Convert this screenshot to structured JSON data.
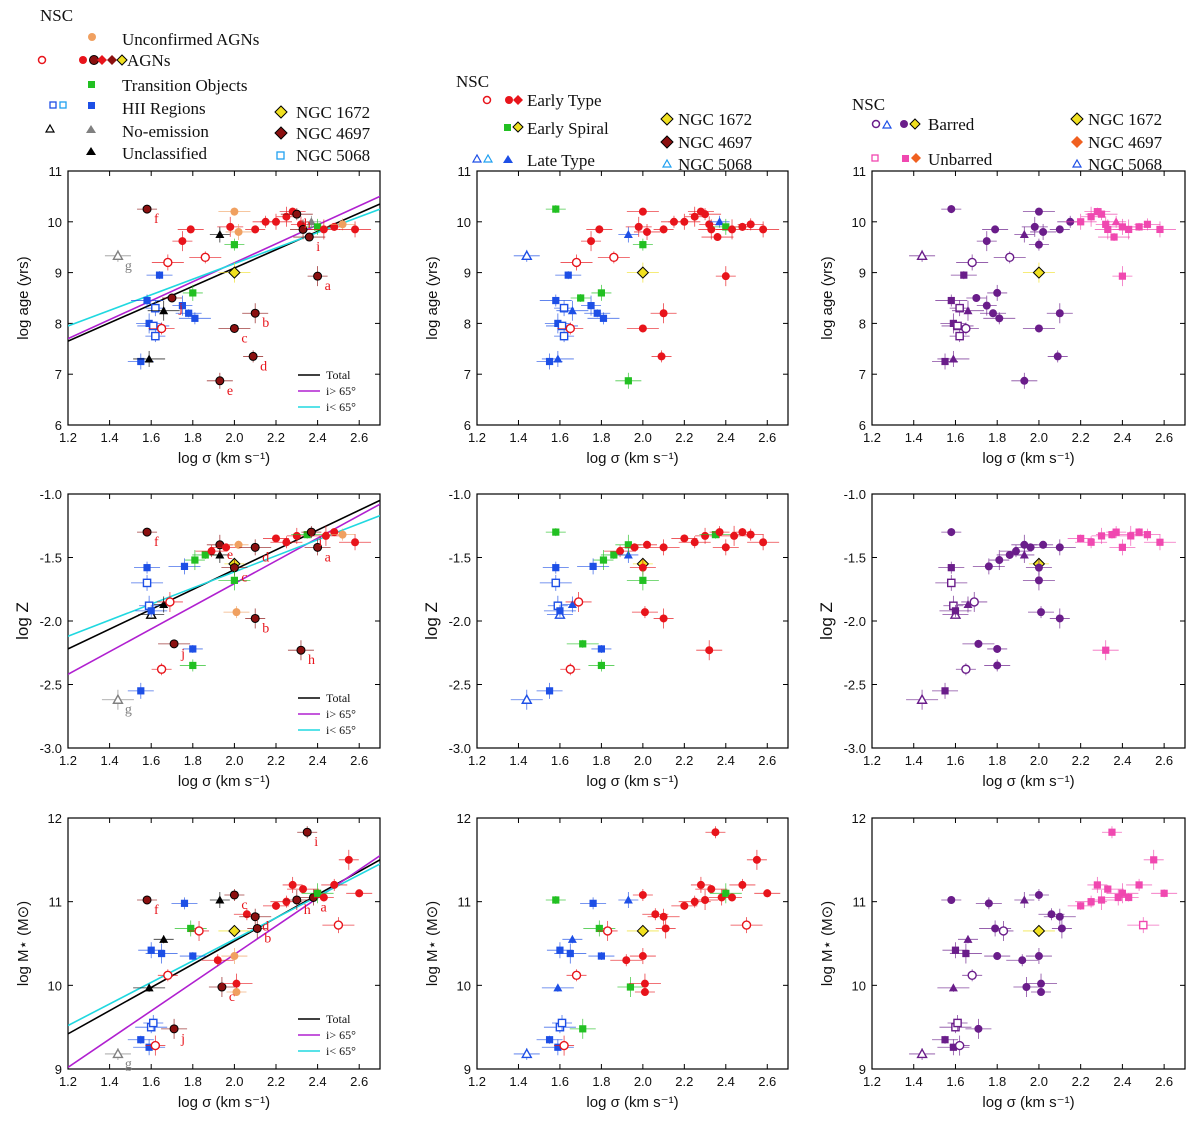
{
  "colors": {
    "agn": "#e8141b",
    "agn_dark": "#8b1010",
    "unconf": "#f0a060",
    "transition": "#22c022",
    "hii": "#1d4fe6",
    "noemis": "#808080",
    "unclass": "#000000",
    "early_type": "#e8141b",
    "early_spiral": "#22c022",
    "late_type": "#1d4fe6",
    "barred": "#6a1d8a",
    "unbarred": "#f048b0",
    "ngc1672": "#f0e020",
    "ngc4697": "#8b1010",
    "ngc4697_orange": "#f06020",
    "ngc5068": "#20a0f0",
    "fit_total": "#000000",
    "fit_high": "#b020d0",
    "fit_low": "#20d8e0"
  },
  "legends": {
    "left": {
      "header": "NSC",
      "items": [
        "Unconfirmed AGNs",
        "AGNs",
        "Transition Objects",
        "HII Regions",
        "No-emission",
        "Unclassified"
      ],
      "special": [
        "NGC 1672",
        "NGC 4697",
        "NGC 5068"
      ]
    },
    "middle": {
      "header": "NSC",
      "items": [
        "Early Type",
        "Early Spiral",
        "Late Type"
      ],
      "special": [
        "NGC 1672",
        "NGC 4697",
        "NGC 5068"
      ]
    },
    "right": {
      "header": "NSC",
      "items": [
        "Barred",
        "Unbarred"
      ],
      "special": [
        "NGC 1672",
        "NGC 4697",
        "NGC 5068"
      ]
    }
  },
  "fit_legend": [
    "Total",
    "i> 65°",
    "i< 65°"
  ],
  "chart_data": [
    {
      "type": "scatter",
      "id": "age",
      "xlabel": "log σ (km s⁻¹)",
      "ylabel": "log age (yrs)",
      "xlim": [
        1.2,
        2.7
      ],
      "ylim": [
        6,
        11
      ],
      "xticks": [
        "1.2",
        "1.4",
        "1.6",
        "1.8",
        "2.0",
        "2.2",
        "2.4",
        "2.6"
      ],
      "yticks": [
        "6",
        "7",
        "8",
        "9",
        "10",
        "11"
      ],
      "fits": [
        {
          "name": "Total",
          "x": [
            1.2,
            2.7
          ],
          "y": [
            7.65,
            10.35
          ]
        },
        {
          "name": "i> 65°",
          "x": [
            1.2,
            2.7
          ],
          "y": [
            7.7,
            10.5
          ]
        },
        {
          "name": "i< 65°",
          "x": [
            1.2,
            2.7
          ],
          "y": [
            7.95,
            10.25
          ]
        }
      ],
      "points": [
        {
          "x": 1.58,
          "y": 10.25,
          "cls": "agn",
          "ring": 1,
          "lab": "f"
        },
        {
          "x": 1.44,
          "y": 9.33,
          "cls": "noemis",
          "open": 1,
          "lab": "g"
        },
        {
          "x": 1.68,
          "y": 9.2,
          "cls": "agn",
          "open": 1
        },
        {
          "x": 1.75,
          "y": 9.62,
          "cls": "agn"
        },
        {
          "x": 1.79,
          "y": 9.85,
          "cls": "agn"
        },
        {
          "x": 1.86,
          "y": 9.3,
          "cls": "agn",
          "open": 1
        },
        {
          "x": 1.93,
          "y": 9.75,
          "cls": "unclass"
        },
        {
          "x": 1.98,
          "y": 9.9,
          "cls": "agn"
        },
        {
          "x": 2.0,
          "y": 10.2,
          "cls": "unconf"
        },
        {
          "x": 2.0,
          "y": 9.55,
          "cls": "transition"
        },
        {
          "x": 2.02,
          "y": 9.8,
          "cls": "unconf"
        },
        {
          "x": 2.0,
          "y": 9.0,
          "cls": "n1672",
          "diamond": 1
        },
        {
          "x": 2.1,
          "y": 9.85,
          "cls": "agn"
        },
        {
          "x": 2.15,
          "y": 10.0,
          "cls": "agn"
        },
        {
          "x": 2.2,
          "y": 10.0,
          "cls": "agn"
        },
        {
          "x": 2.25,
          "y": 10.1,
          "cls": "agn"
        },
        {
          "x": 2.28,
          "y": 10.2,
          "cls": "agn"
        },
        {
          "x": 2.3,
          "y": 10.15,
          "cls": "agn",
          "ring": 1,
          "lab": "h"
        },
        {
          "x": 2.32,
          "y": 9.95,
          "cls": "agn"
        },
        {
          "x": 2.33,
          "y": 9.85,
          "cls": "agn",
          "ring": 1
        },
        {
          "x": 2.36,
          "y": 9.7,
          "cls": "agn",
          "ring": 1,
          "lab": "i"
        },
        {
          "x": 2.37,
          "y": 10.0,
          "cls": "noemis"
        },
        {
          "x": 2.4,
          "y": 9.9,
          "cls": "transition"
        },
        {
          "x": 2.43,
          "y": 9.85,
          "cls": "agn"
        },
        {
          "x": 2.48,
          "y": 9.9,
          "cls": "agn"
        },
        {
          "x": 2.52,
          "y": 9.95,
          "cls": "unconf"
        },
        {
          "x": 2.58,
          "y": 9.85,
          "cls": "agn"
        },
        {
          "x": 2.4,
          "y": 8.93,
          "cls": "agn",
          "ring": 1,
          "lab": "a"
        },
        {
          "x": 1.64,
          "y": 8.95,
          "cls": "hii"
        },
        {
          "x": 1.58,
          "y": 8.45,
          "cls": "hii"
        },
        {
          "x": 1.62,
          "y": 8.3,
          "cls": "hii",
          "open": 1
        },
        {
          "x": 1.59,
          "y": 8.0,
          "cls": "hii"
        },
        {
          "x": 1.61,
          "y": 7.95,
          "cls": "hii",
          "open": 1
        },
        {
          "x": 1.62,
          "y": 7.75,
          "cls": "hii",
          "open": 1
        },
        {
          "x": 1.55,
          "y": 7.25,
          "cls": "hii"
        },
        {
          "x": 1.66,
          "y": 8.25,
          "cls": "unclass"
        },
        {
          "x": 1.7,
          "y": 8.5,
          "cls": "agn",
          "ring": 1,
          "lab": "j"
        },
        {
          "x": 1.65,
          "y": 7.9,
          "cls": "agn",
          "open": 1
        },
        {
          "x": 1.59,
          "y": 7.3,
          "cls": "unclass"
        },
        {
          "x": 1.75,
          "y": 8.35,
          "cls": "hii"
        },
        {
          "x": 1.78,
          "y": 8.2,
          "cls": "hii"
        },
        {
          "x": 1.81,
          "y": 8.1,
          "cls": "hii"
        },
        {
          "x": 1.8,
          "y": 8.6,
          "cls": "transition"
        },
        {
          "x": 2.1,
          "y": 8.2,
          "cls": "agn",
          "ring": 1,
          "lab": "b"
        },
        {
          "x": 2.0,
          "y": 7.9,
          "cls": "agn",
          "ring": 1,
          "lab": "c"
        },
        {
          "x": 2.09,
          "y": 7.35,
          "cls": "agn",
          "ring": 1,
          "lab": "d"
        },
        {
          "x": 1.93,
          "y": 6.87,
          "cls": "agn",
          "ring": 1,
          "lab": "e"
        }
      ]
    },
    {
      "type": "scatter",
      "id": "metal",
      "xlabel": "log σ (km s⁻¹)",
      "ylabel": "log Z",
      "xlim": [
        1.2,
        2.7
      ],
      "ylim": [
        -3.0,
        -1.0
      ],
      "xticks": [
        "1.2",
        "1.4",
        "1.6",
        "1.8",
        "2.0",
        "2.2",
        "2.4",
        "2.6"
      ],
      "yticks": [
        "-3.0",
        "-2.5",
        "-2.0",
        "-1.5",
        "-1.0"
      ],
      "fits": [
        {
          "name": "Total",
          "x": [
            1.2,
            2.7
          ],
          "y": [
            -2.22,
            -1.05
          ]
        },
        {
          "name": "i> 65°",
          "x": [
            1.2,
            2.7
          ],
          "y": [
            -2.42,
            -1.08
          ]
        },
        {
          "name": "i< 65°",
          "x": [
            1.2,
            2.7
          ],
          "y": [
            -2.12,
            -1.17
          ]
        }
      ],
      "points": [
        {
          "x": 1.58,
          "y": -1.3,
          "cls": "agn",
          "ring": 1,
          "lab": "f"
        },
        {
          "x": 1.58,
          "y": -1.58,
          "cls": "hii"
        },
        {
          "x": 1.58,
          "y": -1.7,
          "cls": "hii",
          "open": 1
        },
        {
          "x": 1.59,
          "y": -1.88,
          "cls": "hii",
          "open": 1
        },
        {
          "x": 1.6,
          "y": -1.95,
          "cls": "unclass",
          "open": 1
        },
        {
          "x": 1.6,
          "y": -1.92,
          "cls": "hii"
        },
        {
          "x": 1.66,
          "y": -1.87,
          "cls": "unclass"
        },
        {
          "x": 1.69,
          "y": -1.85,
          "cls": "agn",
          "open": 1
        },
        {
          "x": 1.71,
          "y": -2.18,
          "cls": "agn",
          "ring": 1,
          "lab": "j"
        },
        {
          "x": 1.65,
          "y": -2.38,
          "cls": "agn",
          "open": 1
        },
        {
          "x": 1.55,
          "y": -2.55,
          "cls": "hii"
        },
        {
          "x": 1.44,
          "y": -2.62,
          "cls": "noemis",
          "open": 1,
          "lab": "g"
        },
        {
          "x": 1.8,
          "y": -2.22,
          "cls": "hii"
        },
        {
          "x": 1.8,
          "y": -2.35,
          "cls": "transition"
        },
        {
          "x": 1.76,
          "y": -1.57,
          "cls": "hii"
        },
        {
          "x": 1.81,
          "y": -1.52,
          "cls": "transition"
        },
        {
          "x": 1.86,
          "y": -1.48,
          "cls": "transition"
        },
        {
          "x": 1.89,
          "y": -1.45,
          "cls": "agn"
        },
        {
          "x": 1.93,
          "y": -1.48,
          "cls": "unclass"
        },
        {
          "x": 1.93,
          "y": -1.4,
          "cls": "agn",
          "ring": 1,
          "lab": "e"
        },
        {
          "x": 1.96,
          "y": -1.42,
          "cls": "agn"
        },
        {
          "x": 2.0,
          "y": -1.55,
          "cls": "n1672",
          "diamond": 1
        },
        {
          "x": 2.0,
          "y": -1.58,
          "cls": "agn",
          "ring": 1,
          "lab": "c"
        },
        {
          "x": 2.0,
          "y": -1.68,
          "cls": "transition"
        },
        {
          "x": 2.02,
          "y": -1.4,
          "cls": "unconf"
        },
        {
          "x": 2.01,
          "y": -1.93,
          "cls": "unconf"
        },
        {
          "x": 2.1,
          "y": -1.42,
          "cls": "agn",
          "ring": 1,
          "lab": "d"
        },
        {
          "x": 2.1,
          "y": -1.98,
          "cls": "agn",
          "ring": 1,
          "lab": "b"
        },
        {
          "x": 2.2,
          "y": -1.35,
          "cls": "agn"
        },
        {
          "x": 2.25,
          "y": -1.38,
          "cls": "agn"
        },
        {
          "x": 2.3,
          "y": -1.33,
          "cls": "agn"
        },
        {
          "x": 2.32,
          "y": -2.23,
          "cls": "agn",
          "ring": 1,
          "lab": "h"
        },
        {
          "x": 2.35,
          "y": -1.32,
          "cls": "transition"
        },
        {
          "x": 2.37,
          "y": -1.3,
          "cls": "agn",
          "ring": 1,
          "lab": "i"
        },
        {
          "x": 2.4,
          "y": -1.42,
          "cls": "agn",
          "ring": 1,
          "lab": "a"
        },
        {
          "x": 2.44,
          "y": -1.33,
          "cls": "agn"
        },
        {
          "x": 2.48,
          "y": -1.3,
          "cls": "agn"
        },
        {
          "x": 2.52,
          "y": -1.32,
          "cls": "unconf"
        },
        {
          "x": 2.58,
          "y": -1.38,
          "cls": "agn"
        }
      ]
    },
    {
      "type": "scatter",
      "id": "mass",
      "xlabel": "log σ (km s⁻¹)",
      "ylabel": "log M⋆ (M⊙)",
      "xlim": [
        1.2,
        2.7
      ],
      "ylim": [
        9,
        12
      ],
      "xticks": [
        "1.2",
        "1.4",
        "1.6",
        "1.8",
        "2.0",
        "2.2",
        "2.4",
        "2.6"
      ],
      "yticks": [
        "9",
        "10",
        "11",
        "12"
      ],
      "fits": [
        {
          "name": "Total",
          "x": [
            1.2,
            2.7
          ],
          "y": [
            9.42,
            11.5
          ]
        },
        {
          "name": "i> 65°",
          "x": [
            1.2,
            2.7
          ],
          "y": [
            9.02,
            11.55
          ]
        },
        {
          "name": "i< 65°",
          "x": [
            1.2,
            2.7
          ],
          "y": [
            9.52,
            11.45
          ]
        }
      ],
      "points": [
        {
          "x": 1.58,
          "y": 11.02,
          "cls": "agn",
          "ring": 1,
          "lab": "f"
        },
        {
          "x": 1.44,
          "y": 9.18,
          "cls": "noemis",
          "open": 1,
          "lab": "g"
        },
        {
          "x": 1.59,
          "y": 9.26,
          "cls": "hii"
        },
        {
          "x": 1.62,
          "y": 9.28,
          "cls": "agn",
          "open": 1
        },
        {
          "x": 1.55,
          "y": 9.35,
          "cls": "hii"
        },
        {
          "x": 1.6,
          "y": 9.5,
          "cls": "hii",
          "open": 1
        },
        {
          "x": 1.61,
          "y": 9.55,
          "cls": "hii",
          "open": 1
        },
        {
          "x": 1.71,
          "y": 9.48,
          "cls": "agn",
          "ring": 1,
          "lab": "j"
        },
        {
          "x": 1.59,
          "y": 9.97,
          "cls": "unclass"
        },
        {
          "x": 1.68,
          "y": 10.12,
          "cls": "agn",
          "open": 1
        },
        {
          "x": 1.6,
          "y": 10.42,
          "cls": "hii"
        },
        {
          "x": 1.65,
          "y": 10.38,
          "cls": "hii"
        },
        {
          "x": 1.66,
          "y": 10.55,
          "cls": "unclass"
        },
        {
          "x": 1.76,
          "y": 10.98,
          "cls": "hii"
        },
        {
          "x": 1.79,
          "y": 10.68,
          "cls": "transition"
        },
        {
          "x": 1.83,
          "y": 10.65,
          "cls": "agn",
          "open": 1
        },
        {
          "x": 1.8,
          "y": 10.35,
          "cls": "hii"
        },
        {
          "x": 1.92,
          "y": 10.3,
          "cls": "agn"
        },
        {
          "x": 1.93,
          "y": 11.02,
          "cls": "unclass"
        },
        {
          "x": 1.94,
          "y": 9.98,
          "cls": "agn",
          "ring": 1,
          "lab": "c"
        },
        {
          "x": 2.0,
          "y": 10.65,
          "cls": "n1672",
          "diamond": 1
        },
        {
          "x": 2.0,
          "y": 11.08,
          "cls": "agn",
          "ring": 1,
          "lab": "c"
        },
        {
          "x": 2.0,
          "y": 10.35,
          "cls": "unconf"
        },
        {
          "x": 2.01,
          "y": 10.02,
          "cls": "agn"
        },
        {
          "x": 2.01,
          "y": 9.92,
          "cls": "unconf"
        },
        {
          "x": 2.06,
          "y": 10.85,
          "cls": "agn"
        },
        {
          "x": 2.1,
          "y": 10.82,
          "cls": "agn",
          "ring": 1,
          "lab": "d"
        },
        {
          "x": 2.11,
          "y": 10.68,
          "cls": "agn",
          "ring": 1,
          "lab": "b"
        },
        {
          "x": 2.2,
          "y": 10.95,
          "cls": "agn"
        },
        {
          "x": 2.25,
          "y": 11.0,
          "cls": "agn"
        },
        {
          "x": 2.28,
          "y": 11.2,
          "cls": "agn"
        },
        {
          "x": 2.3,
          "y": 11.02,
          "cls": "agn",
          "ring": 1,
          "lab": "h"
        },
        {
          "x": 2.33,
          "y": 11.15,
          "cls": "agn"
        },
        {
          "x": 2.35,
          "y": 11.83,
          "cls": "agn",
          "ring": 1,
          "lab": "i"
        },
        {
          "x": 2.38,
          "y": 11.05,
          "cls": "agn",
          "ring": 1,
          "lab": "a"
        },
        {
          "x": 2.4,
          "y": 11.1,
          "cls": "transition"
        },
        {
          "x": 2.43,
          "y": 11.05,
          "cls": "agn"
        },
        {
          "x": 2.48,
          "y": 11.2,
          "cls": "agn"
        },
        {
          "x": 2.5,
          "y": 10.72,
          "cls": "agn",
          "open": 1
        },
        {
          "x": 2.55,
          "y": 11.5,
          "cls": "agn"
        },
        {
          "x": 2.6,
          "y": 11.1,
          "cls": "agn"
        }
      ]
    }
  ]
}
